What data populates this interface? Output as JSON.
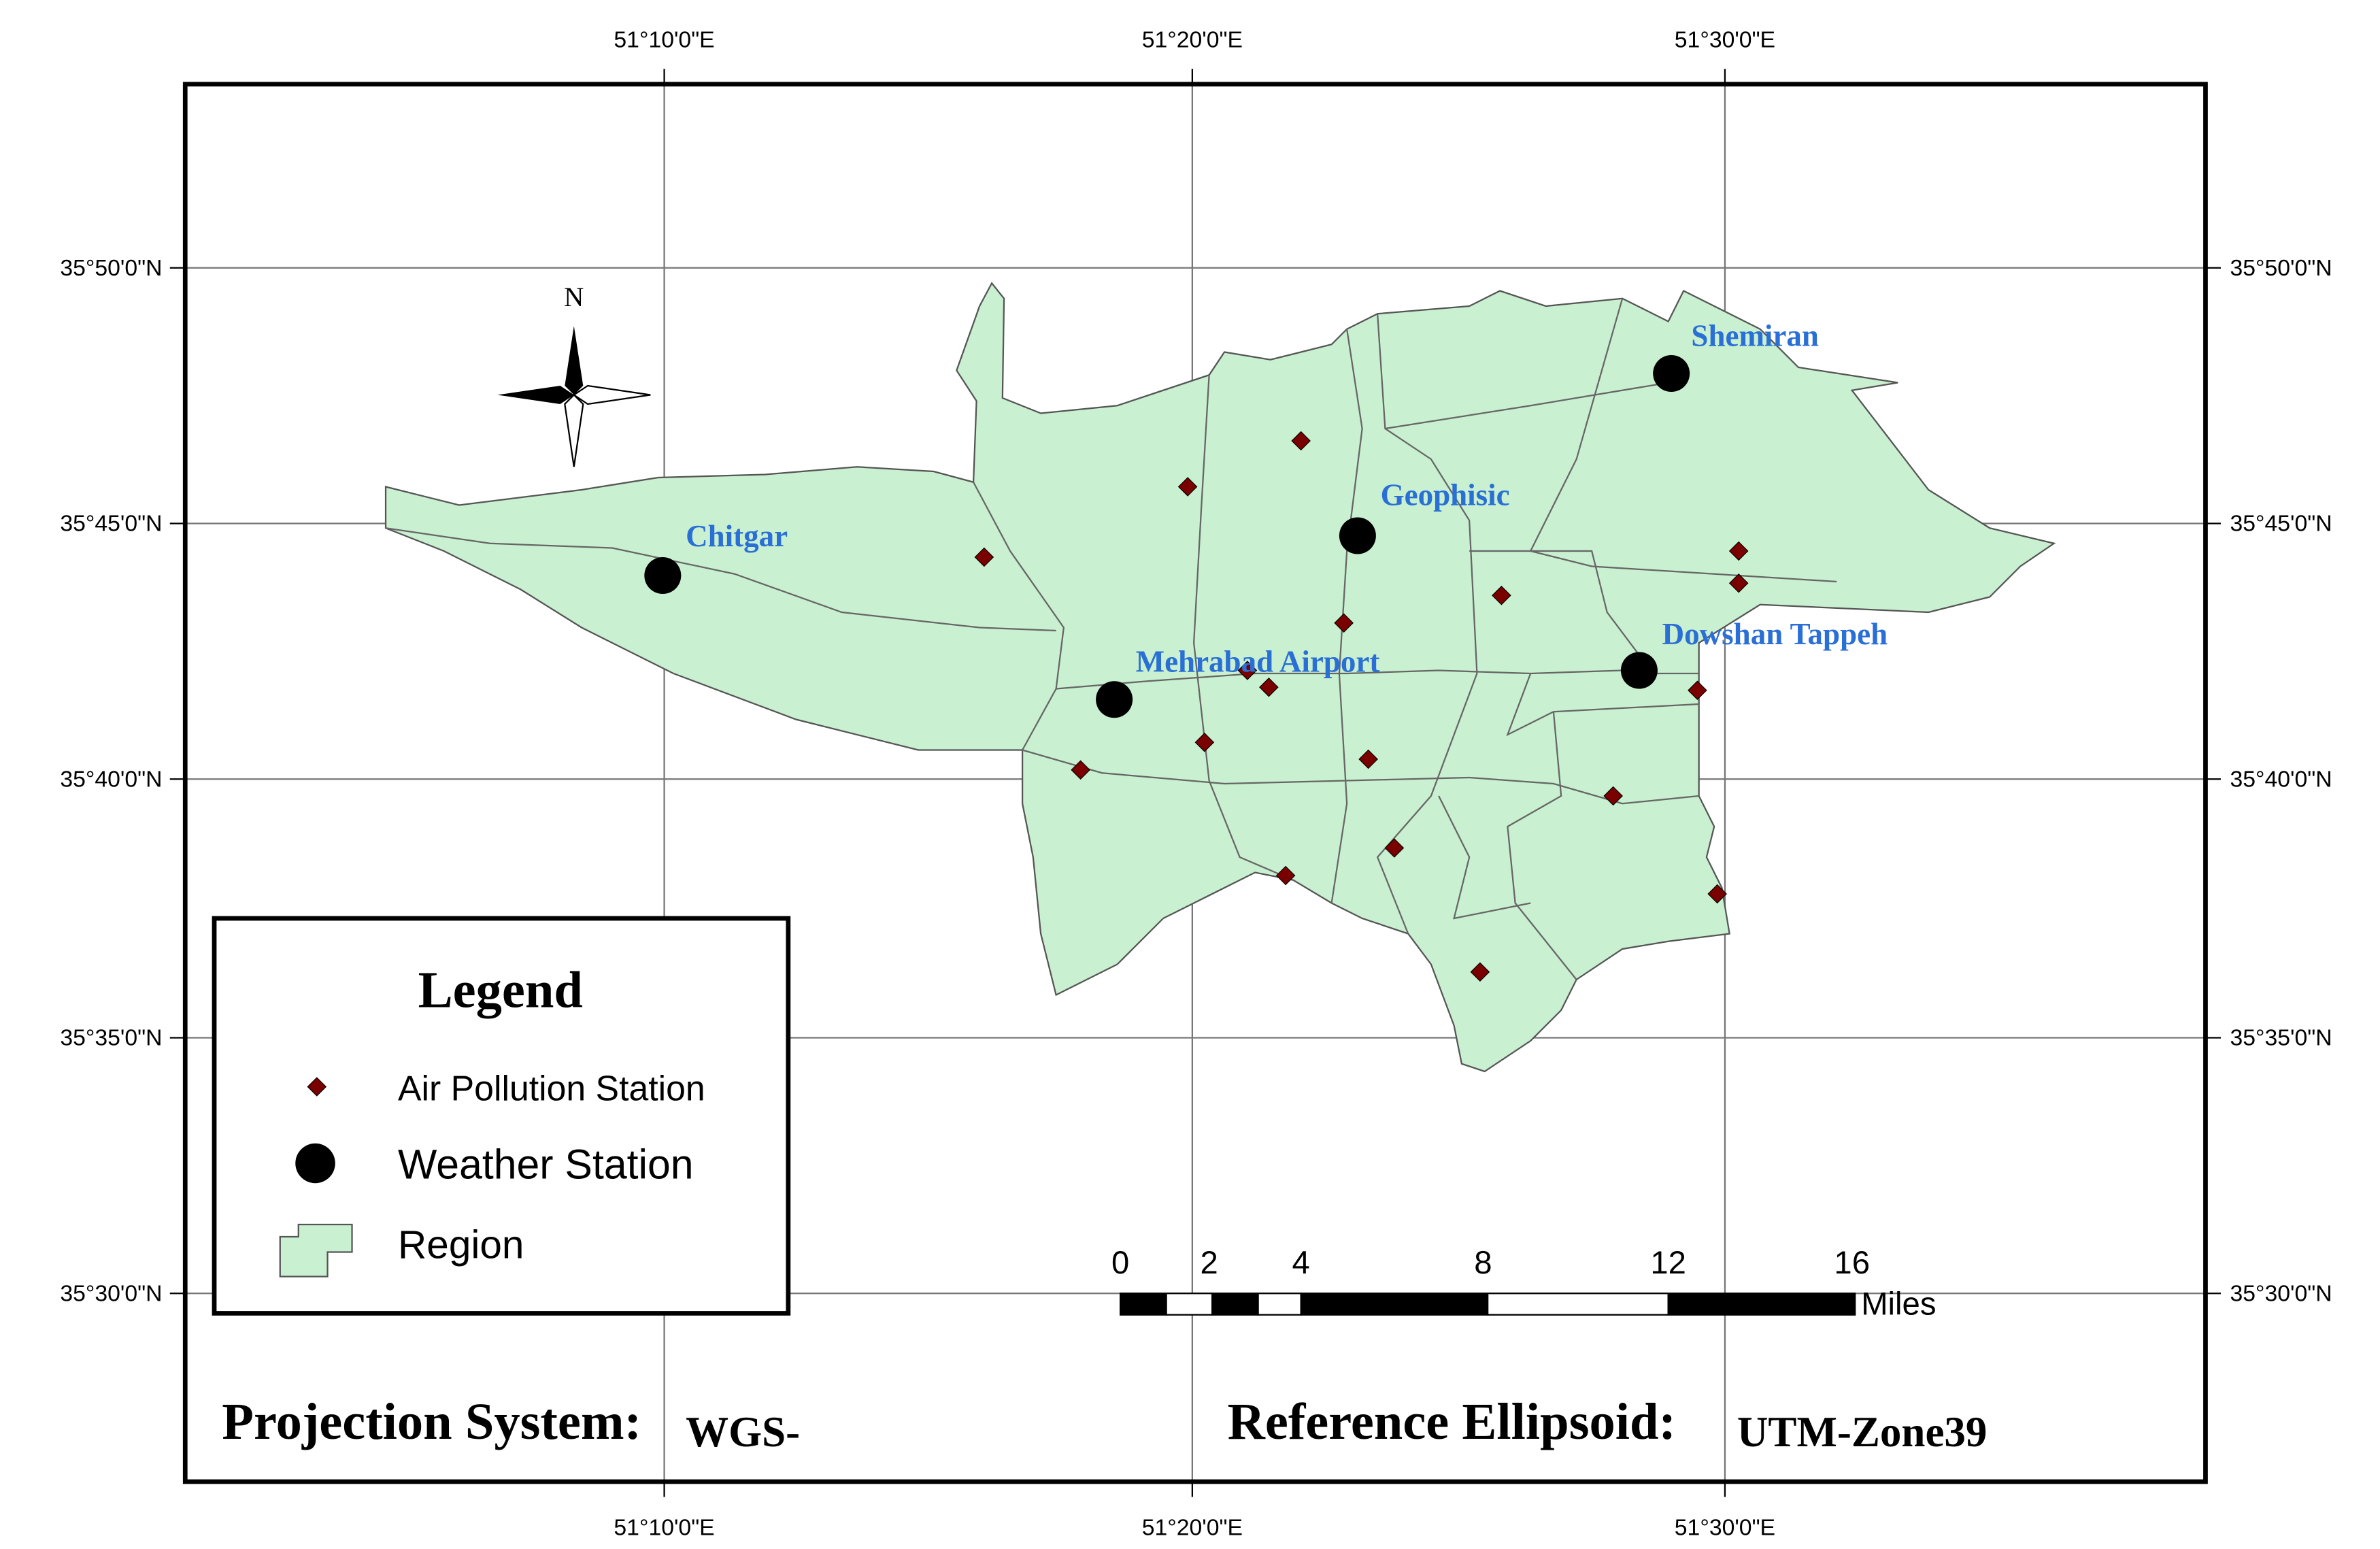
{
  "map": {
    "longitude_labels": [
      "51°10'0\"E",
      "51°20'0\"E",
      "51°30'0\"E"
    ],
    "latitude_labels": [
      "35°50'0\"N",
      "35°45'0\"N",
      "35°40'0\"N",
      "35°35'0\"N",
      "35°30'0\"N"
    ],
    "north_label": "N",
    "station_labels": [
      "Shemiran",
      "Geophisic",
      "Chitgar",
      "Mehrabad Airport",
      "Dowshan Tappeh"
    ],
    "legend": {
      "title": "Legend",
      "items": [
        "Air Pollution Station",
        "Weather Station",
        "Region"
      ]
    },
    "scale_bar": {
      "ticks": [
        0,
        2,
        4,
        8,
        12,
        16
      ],
      "unit": "Miles"
    },
    "projection": {
      "label": "Projection System:",
      "value": "WGS-"
    },
    "reference": {
      "label": "Reference Ellipsoid:",
      "value": "UTM-Zone39"
    }
  }
}
